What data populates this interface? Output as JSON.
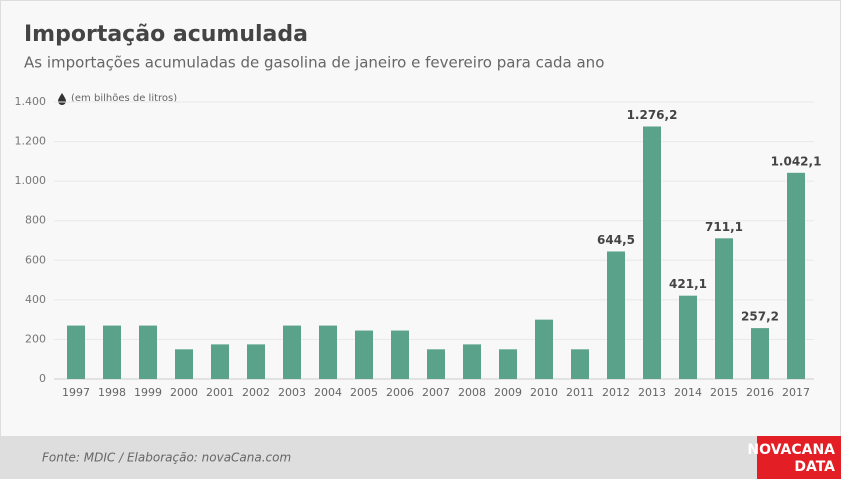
{
  "chart_data": {
    "type": "bar",
    "title": "Importação acumulada",
    "subtitle": "As importações acumuladas de gasolina de janeiro e fevereiro para cada ano",
    "unit_note": "(em bilhões de litros)",
    "categories": [
      "1997",
      "1998",
      "1999",
      "2000",
      "2001",
      "2002",
      "2003",
      "2004",
      "2005",
      "2006",
      "2007",
      "2008",
      "2009",
      "2010",
      "2011",
      "2012",
      "2013",
      "2014",
      "2015",
      "2016",
      "2017"
    ],
    "values": [
      270,
      270,
      270,
      150,
      175,
      175,
      270,
      270,
      245,
      245,
      150,
      175,
      150,
      300,
      150,
      644.5,
      1276.2,
      421.1,
      711.1,
      257.2,
      1042.1
    ],
    "value_labels": [
      null,
      null,
      null,
      null,
      null,
      null,
      null,
      null,
      null,
      null,
      null,
      null,
      null,
      null,
      null,
      "644,5",
      "1.276,2",
      "421,1",
      "711,1",
      "257,2",
      "1.042,1"
    ],
    "color": "#5aa38a",
    "ylim": [
      0,
      1400
    ],
    "yticks": [
      0,
      200,
      400,
      600,
      800,
      {
        "value": 1000,
        "label": "1.000"
      },
      {
        "value": 1200,
        "label": "1.200"
      },
      {
        "value": 1400,
        "label": "1.400"
      }
    ],
    "grid": true,
    "source": "Fonte: MDIC / Elaboração: novaCana.com",
    "logo": [
      "NOVACANA",
      "DATA"
    ]
  }
}
